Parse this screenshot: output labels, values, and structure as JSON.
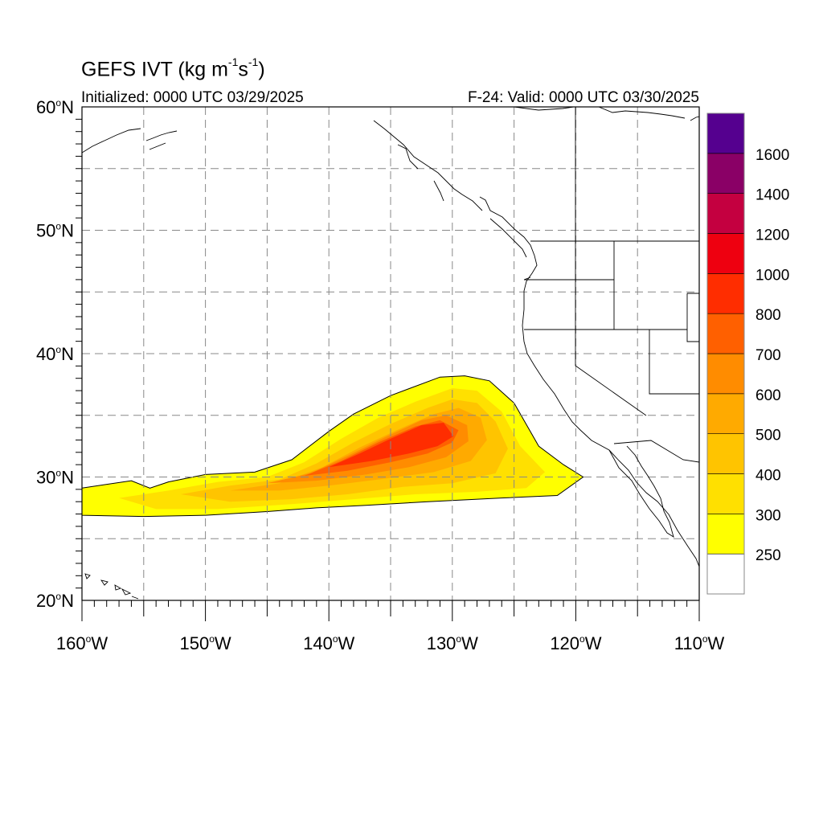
{
  "title": {
    "main": "GEFS IVT (kg m",
    "exp1": "-1",
    "mid": "s",
    "exp2": "-1",
    "end": ")"
  },
  "subtitle_left": "Initialized: 0000 UTC 03/29/2025",
  "subtitle_right": "F-24: Valid: 0000 UTC 03/30/2025",
  "map": {
    "lon_range": [
      -160,
      -110
    ],
    "lat_range": [
      20,
      60
    ],
    "lon_ticks": [
      {
        "value": -160,
        "label": "160"
      },
      {
        "value": -150,
        "label": "150"
      },
      {
        "value": -140,
        "label": "140"
      },
      {
        "value": -130,
        "label": "130"
      },
      {
        "value": -120,
        "label": "120"
      },
      {
        "value": -110,
        "label": "110"
      }
    ],
    "lon_suffix": "W",
    "lat_ticks": [
      {
        "value": 60,
        "label": "60"
      },
      {
        "value": 50,
        "label": "50"
      },
      {
        "value": 40,
        "label": "40"
      },
      {
        "value": 30,
        "label": "30"
      },
      {
        "value": 20,
        "label": "20"
      }
    ],
    "lat_suffix": "N",
    "degree_symbol": "o",
    "grid_interval_deg": 5,
    "grid": "dashed"
  },
  "colorbar": {
    "labels": [
      "1600",
      "1400",
      "1200",
      "1000",
      "800",
      "700",
      "600",
      "500",
      "400",
      "300",
      "250"
    ],
    "colors": [
      "#ffffff",
      "#ffff00",
      "#ffe000",
      "#ffc400",
      "#ffaa00",
      "#ff8c00",
      "#ff6000",
      "#ff2d00",
      "#ee0010",
      "#c40040",
      "#8a0066",
      "#55008f"
    ]
  },
  "chart_data": {
    "type": "heatmap",
    "field": "IVT",
    "contours": [
      {
        "level": 250,
        "color": "#ffff00",
        "points": [
          [
            -160,
            29.1
          ],
          [
            -156,
            29.7
          ],
          [
            -154.5,
            29.1
          ],
          [
            -153,
            29.6
          ],
          [
            -150,
            30.2
          ],
          [
            -146,
            30.4
          ],
          [
            -143,
            31.4
          ],
          [
            -140,
            33.7
          ],
          [
            -138,
            35.1
          ],
          [
            -135,
            36.6
          ],
          [
            -131,
            38.1
          ],
          [
            -129,
            38.2
          ],
          [
            -127,
            37.8
          ],
          [
            -125,
            36
          ],
          [
            -123,
            32.5
          ],
          [
            -121,
            31
          ],
          [
            -119.4,
            30
          ],
          [
            -121.5,
            28.5
          ],
          [
            -126,
            28.3
          ],
          [
            -132,
            28
          ],
          [
            -137,
            27.7
          ],
          [
            -141,
            27.5
          ],
          [
            -145,
            27.2
          ],
          [
            -150,
            26.9
          ],
          [
            -155,
            26.8
          ],
          [
            -160,
            26.9
          ]
        ]
      },
      {
        "level": 300,
        "color": "#ffe000",
        "points": [
          [
            -157,
            28.3
          ],
          [
            -153,
            28.9
          ],
          [
            -149,
            29.6
          ],
          [
            -145,
            30
          ],
          [
            -142,
            31.2
          ],
          [
            -139,
            33.1
          ],
          [
            -136,
            34.8
          ],
          [
            -133,
            36.1
          ],
          [
            -130,
            37.2
          ],
          [
            -128,
            37
          ],
          [
            -126,
            35.3
          ],
          [
            -124.5,
            32.5
          ],
          [
            -122.5,
            30.4
          ],
          [
            -124,
            29.1
          ],
          [
            -128,
            28.8
          ],
          [
            -133,
            28.6
          ],
          [
            -138,
            28.2
          ],
          [
            -143,
            27.8
          ],
          [
            -149,
            27.4
          ],
          [
            -154,
            27.4
          ]
        ]
      },
      {
        "level": 400,
        "color": "#ffc400",
        "points": [
          [
            -152,
            28.6
          ],
          [
            -148,
            29.3
          ],
          [
            -144,
            29.8
          ],
          [
            -141,
            31.1
          ],
          [
            -138,
            32.8
          ],
          [
            -135,
            34.3
          ],
          [
            -132,
            35.6
          ],
          [
            -130,
            36.3
          ],
          [
            -128,
            36
          ],
          [
            -126.5,
            34.5
          ],
          [
            -125.5,
            32.3
          ],
          [
            -126.5,
            30.3
          ],
          [
            -130,
            29.5
          ],
          [
            -134,
            29.2
          ],
          [
            -138.5,
            28.6
          ],
          [
            -143,
            28.2
          ],
          [
            -148,
            28
          ]
        ]
      },
      {
        "level": 500,
        "color": "#ffaa00",
        "points": [
          [
            -148,
            28.9
          ],
          [
            -144,
            29.5
          ],
          [
            -140.5,
            30.8
          ],
          [
            -137.5,
            32.4
          ],
          [
            -134.5,
            33.8
          ],
          [
            -131.5,
            35.1
          ],
          [
            -129.5,
            35.6
          ],
          [
            -127.7,
            34.8
          ],
          [
            -127.2,
            33
          ],
          [
            -128.5,
            31.3
          ],
          [
            -131.5,
            30.4
          ],
          [
            -136,
            29.8
          ],
          [
            -140,
            29.3
          ],
          [
            -144,
            28.9
          ]
        ]
      },
      {
        "level": 600,
        "color": "#ff8c00",
        "points": [
          [
            -145,
            29.5
          ],
          [
            -141.5,
            30.3
          ],
          [
            -138.5,
            31.7
          ],
          [
            -135.5,
            33.2
          ],
          [
            -132.5,
            34.6
          ],
          [
            -130.5,
            35
          ],
          [
            -128.8,
            34.2
          ],
          [
            -128.7,
            32.9
          ],
          [
            -130.5,
            31.6
          ],
          [
            -133.5,
            30.8
          ],
          [
            -137,
            30.2
          ],
          [
            -141,
            29.7
          ]
        ]
      },
      {
        "level": 700,
        "color": "#ff6000",
        "points": [
          [
            -142,
            30.1
          ],
          [
            -139,
            31.3
          ],
          [
            -136,
            32.8
          ],
          [
            -133,
            34.1
          ],
          [
            -131,
            34.6
          ],
          [
            -129.5,
            33.8
          ],
          [
            -130,
            32.8
          ],
          [
            -132,
            31.9
          ],
          [
            -135,
            31.2
          ],
          [
            -138.5,
            30.5
          ]
        ]
      },
      {
        "level": 800,
        "color": "#ff2d00",
        "points": [
          [
            -140,
            30.8
          ],
          [
            -137.5,
            31.9
          ],
          [
            -135,
            33.1
          ],
          [
            -132.5,
            34.2
          ],
          [
            -130.7,
            34.4
          ],
          [
            -129.9,
            33.3
          ],
          [
            -131.2,
            32.5
          ],
          [
            -133.5,
            31.9
          ],
          [
            -136.5,
            31.3
          ]
        ]
      }
    ]
  }
}
